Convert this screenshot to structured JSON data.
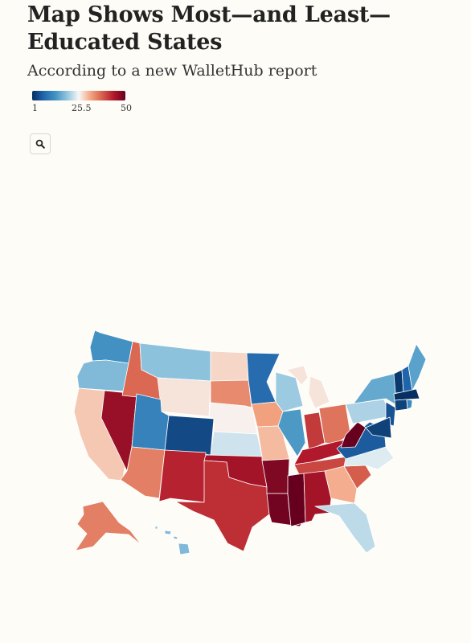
{
  "header": {
    "title": "Map Shows Most—and Least—Educated States",
    "subtitle": "According to a new WalletHub report"
  },
  "legend": {
    "min_label": "1",
    "mid_label": "25.5",
    "max_label": "50",
    "min_color": "#053061",
    "max_color": "#67001f"
  },
  "toolbar": {
    "zoom_icon": "search-icon"
  },
  "map_data": {
    "type": "choropleth",
    "metric": "rank",
    "scale_domain": [
      1,
      50
    ],
    "states": [
      {
        "id": "WA",
        "rank": 13
      },
      {
        "id": "OR",
        "rank": 18
      },
      {
        "id": "CA",
        "rank": 29
      },
      {
        "id": "NV",
        "rank": 46
      },
      {
        "id": "ID",
        "rank": 37
      },
      {
        "id": "MT",
        "rank": 19
      },
      {
        "id": "WY",
        "rank": 27
      },
      {
        "id": "UT",
        "rank": 11
      },
      {
        "id": "AZ",
        "rank": 35
      },
      {
        "id": "CO",
        "rank": 4
      },
      {
        "id": "NM",
        "rank": 43
      },
      {
        "id": "ND",
        "rank": 28
      },
      {
        "id": "SD",
        "rank": 34
      },
      {
        "id": "NE",
        "rank": 26
      },
      {
        "id": "KS",
        "rank": 23
      },
      {
        "id": "OK",
        "rank": 45
      },
      {
        "id": "TX",
        "rank": 42
      },
      {
        "id": "MN",
        "rank": 8
      },
      {
        "id": "IA",
        "rank": 32
      },
      {
        "id": "MO",
        "rank": 30
      },
      {
        "id": "AR",
        "rank": 48
      },
      {
        "id": "LA",
        "rank": 49
      },
      {
        "id": "WI",
        "rank": 20
      },
      {
        "id": "IL",
        "rank": 14
      },
      {
        "id": "MI",
        "rank": 27
      },
      {
        "id": "IN",
        "rank": 41
      },
      {
        "id": "OH",
        "rank": 36
      },
      {
        "id": "KY",
        "rank": 44
      },
      {
        "id": "TN",
        "rank": 40
      },
      {
        "id": "MS",
        "rank": 50
      },
      {
        "id": "AL",
        "rank": 45
      },
      {
        "id": "GA",
        "rank": 31
      },
      {
        "id": "FL",
        "rank": 22
      },
      {
        "id": "SC",
        "rank": 38
      },
      {
        "id": "NC",
        "rank": 24
      },
      {
        "id": "VA",
        "rank": 6
      },
      {
        "id": "WV",
        "rank": 50
      },
      {
        "id": "PA",
        "rank": 21
      },
      {
        "id": "NY",
        "rank": 16
      },
      {
        "id": "VT",
        "rank": 2
      },
      {
        "id": "NH",
        "rank": 7
      },
      {
        "id": "ME",
        "rank": 15
      },
      {
        "id": "MA",
        "rank": 1
      },
      {
        "id": "CT",
        "rank": 3
      },
      {
        "id": "RI",
        "rank": 12
      },
      {
        "id": "NJ",
        "rank": 5
      },
      {
        "id": "DE",
        "rank": 16
      },
      {
        "id": "MD",
        "rank": 3
      },
      {
        "id": "AK",
        "rank": 35
      },
      {
        "id": "HI",
        "rank": 18
      }
    ]
  }
}
